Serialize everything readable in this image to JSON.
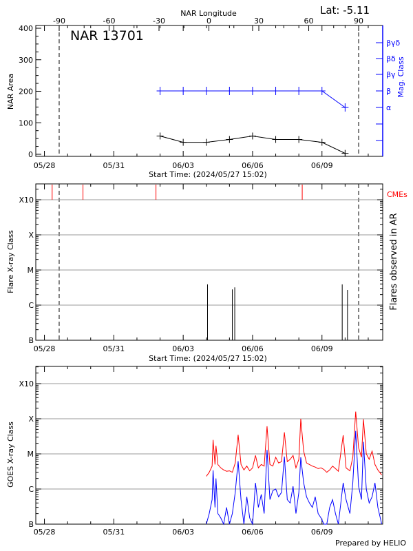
{
  "chart_data": [
    {
      "type": "line",
      "title": "NAR 13701",
      "annotation": "Lat:  -5.11",
      "top_axis": {
        "label": "NAR Longitude",
        "ticks": [
          -90,
          -60,
          -30,
          0,
          30,
          60,
          90
        ]
      },
      "limb_longitudes": [
        -90,
        90
      ],
      "xlabel": "Start Time: (2024/05/27 15:02)",
      "xlim": [
        "2024-05-27 15:02",
        "2024-06-11 15:02"
      ],
      "x_tick_labels": [
        "05/28",
        "05/31",
        "06/03",
        "06/06",
        "06/09"
      ],
      "x_tick_dates": [
        "2024-05-28 00:00",
        "2024-05-31 00:00",
        "2024-06-03 00:00",
        "2024-06-06 00:00",
        "2024-06-09 00:00"
      ],
      "ylabel": "NAR Area",
      "ylim": [
        0,
        400
      ],
      "yticks": [
        0,
        100,
        200,
        300,
        400
      ],
      "right_axis": {
        "label": "Mag. Class",
        "color": "#0000ff",
        "levels": [
          "",
          "",
          "α",
          "β",
          "βγ",
          "βδ",
          "βγδ"
        ]
      },
      "series": [
        {
          "name": "NAR Area",
          "color": "#000000",
          "x": [
            "2024-06-02 00:00",
            "2024-06-03 00:00",
            "2024-06-04 00:00",
            "2024-06-05 00:00",
            "2024-06-06 00:00",
            "2024-06-07 00:00",
            "2024-06-08 00:00",
            "2024-06-09 00:00",
            "2024-06-10 00:00"
          ],
          "values": [
            58,
            38,
            38,
            47,
            58,
            47,
            47,
            38,
            3
          ]
        },
        {
          "name": "Mag. Class",
          "color": "#0000ff",
          "x": [
            "2024-06-02 00:00",
            "2024-06-03 00:00",
            "2024-06-04 00:00",
            "2024-06-05 00:00",
            "2024-06-06 00:00",
            "2024-06-07 00:00",
            "2024-06-08 00:00",
            "2024-06-09 00:00",
            "2024-06-10 00:00"
          ],
          "values": [
            "β",
            "β",
            "β",
            "β",
            "β",
            "β",
            "β",
            "β",
            "α"
          ]
        }
      ]
    },
    {
      "type": "bar",
      "xlabel": "Start Time: (2024/05/27 15:02)",
      "x_tick_labels": [
        "05/28",
        "05/31",
        "06/03",
        "06/06",
        "06/09"
      ],
      "ylabel": "Flare X-ray Class",
      "y_scale": "log",
      "ylim": [
        1e-07,
        0.0028
      ],
      "class_labels": [
        "B",
        "C",
        "M",
        "X",
        "X10"
      ],
      "class_values": [
        1e-07,
        1e-06,
        1e-05,
        0.0001,
        0.001
      ],
      "right_label": "Flares observed in AR",
      "cme_label": "CMEs",
      "cme_color": "#ff0000",
      "grid": true,
      "limb_dates": [
        "2024-05-28 18:00",
        "2024-06-11 00:30"
      ],
      "flares": {
        "x": [
          "2024-06-04 01:15",
          "2024-06-05 03:00",
          "2024-06-05 05:30",
          "2024-06-09 21:00",
          "2024-06-10 02:30"
        ],
        "values": [
          3.9e-06,
          2.8e-06,
          3.2e-06,
          3.9e-06,
          2.7e-06
        ]
      },
      "cmes": [
        "2024-05-28 08:00",
        "2024-05-29 16:00",
        "2024-06-01 19:45",
        "2024-06-08 03:30"
      ]
    },
    {
      "type": "line",
      "ylabel": "GOES X-ray Class",
      "y_scale": "log",
      "ylim": [
        1e-07,
        0.003
      ],
      "class_labels": [
        "B",
        "C",
        "M",
        "X",
        "X10"
      ],
      "class_values": [
        1e-07,
        1e-06,
        1e-05,
        0.0001,
        0.001
      ],
      "x_tick_labels": [
        "05/28",
        "05/31",
        "06/03",
        "06/06",
        "06/09"
      ],
      "grid": true,
      "footer": "Prepared by HELIO",
      "x": [
        "2024-06-04 00:00",
        "2024-06-04 03:00",
        "2024-06-04 06:00",
        "2024-06-04 07:00",
        "2024-06-04 09:00",
        "2024-06-04 10:00",
        "2024-06-04 12:00",
        "2024-06-04 15:00",
        "2024-06-04 18:00",
        "2024-06-04 21:00",
        "2024-06-05 00:00",
        "2024-06-05 03:00",
        "2024-06-05 06:00",
        "2024-06-05 09:00",
        "2024-06-05 12:00",
        "2024-06-05 15:00",
        "2024-06-05 18:00",
        "2024-06-05 21:00",
        "2024-06-06 00:00",
        "2024-06-06 03:00",
        "2024-06-06 06:00",
        "2024-06-06 09:00",
        "2024-06-06 12:00",
        "2024-06-06 15:00",
        "2024-06-06 18:00",
        "2024-06-06 21:00",
        "2024-06-07 00:00",
        "2024-06-07 03:00",
        "2024-06-07 06:00",
        "2024-06-07 09:00",
        "2024-06-07 12:00",
        "2024-06-07 15:00",
        "2024-06-07 18:00",
        "2024-06-07 21:00",
        "2024-06-08 00:00",
        "2024-06-08 02:00",
        "2024-06-08 05:00",
        "2024-06-08 08:00",
        "2024-06-08 11:00",
        "2024-06-08 14:00",
        "2024-06-08 17:00",
        "2024-06-08 20:00",
        "2024-06-08 23:00",
        "2024-06-09 02:00",
        "2024-06-09 05:00",
        "2024-06-09 08:00",
        "2024-06-09 11:00",
        "2024-06-09 14:00",
        "2024-06-09 17:00",
        "2024-06-09 22:00",
        "2024-06-10 01:00",
        "2024-06-10 05:00",
        "2024-06-10 08:00",
        "2024-06-10 11:00",
        "2024-06-10 14:00",
        "2024-06-10 17:00",
        "2024-06-10 19:00",
        "2024-06-10 22:00",
        "2024-06-11 01:00",
        "2024-06-11 04:00",
        "2024-06-11 07:00",
        "2024-06-11 10:00",
        "2024-06-11 14:00"
      ],
      "series": [
        {
          "color": "#ff0000",
          "values": [
            2.3e-06,
            3e-06,
            4.5e-06,
            2.5e-05,
            5e-06,
            1.7e-05,
            5e-06,
            4e-06,
            3.5e-06,
            3.2e-06,
            3.3e-06,
            3e-06,
            5.5e-06,
            3.5e-05,
            5e-06,
            3.5e-06,
            4.5e-06,
            3.3e-06,
            4e-06,
            9e-06,
            4e-06,
            5e-06,
            4.5e-06,
            6.1e-05,
            5e-06,
            4.5e-06,
            8e-06,
            5.5e-06,
            6e-06,
            4.1e-05,
            6e-06,
            7e-06,
            9e-06,
            4e-06,
            7e-06,
            0.0001,
            1.2e-05,
            5.5e-06,
            5e-06,
            4.5e-06,
            4.2e-06,
            3.8e-06,
            4e-06,
            3.6e-06,
            3e-06,
            3.5e-06,
            4.5e-06,
            3.8e-06,
            3.2e-06,
            3.4e-05,
            4e-06,
            3.3e-06,
            8e-06,
            0.00016,
            1.5e-05,
            8e-06,
            9.7e-05,
            1e-05,
            7e-06,
            1.2e-05,
            5e-06,
            3.5e-06,
            2.5e-06
          ]
        },
        {
          "color": "#0000ff",
          "values": [
            1e-07,
            2e-07,
            5e-07,
            3.4e-06,
            3e-07,
            2e-06,
            2e-07,
            1.5e-07,
            1e-07,
            3e-07,
            1e-07,
            2e-07,
            8e-07,
            6.2e-06,
            5e-07,
            1e-07,
            6e-07,
            1.5e-07,
            1e-07,
            1.5e-06,
            3e-07,
            7e-07,
            2e-07,
            1.3e-05,
            5e-07,
            9e-07,
            1e-06,
            6e-07,
            8e-07,
            8.4e-06,
            5e-07,
            4e-07,
            1.2e-06,
            2e-07,
            8e-07,
            8e-06,
            1.5e-06,
            6e-07,
            4e-07,
            3e-07,
            6e-07,
            2e-07,
            1.5e-07,
            1e-07,
            1e-07,
            3e-07,
            5e-07,
            2e-07,
            1e-07,
            1.5e-06,
            5e-07,
            2e-07,
            1.5e-06,
            4.5e-05,
            1.2e-06,
            5e-07,
            2.2e-05,
            1e-06,
            4e-07,
            6e-07,
            1.5e-06,
            3e-07,
            1e-07
          ]
        }
      ]
    }
  ]
}
